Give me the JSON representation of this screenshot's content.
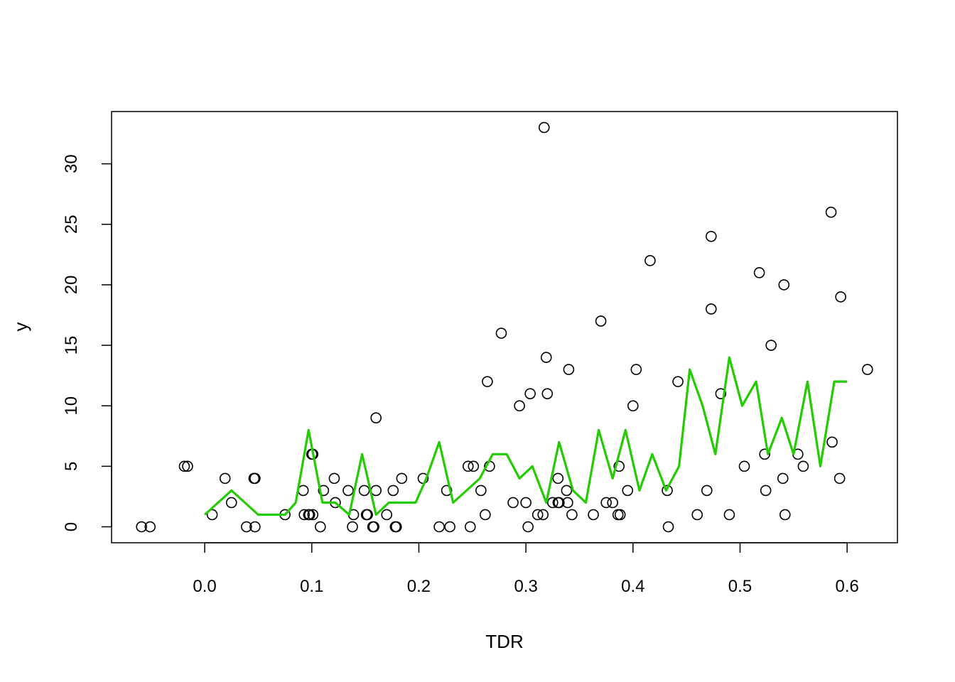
{
  "chart_data": {
    "type": "scatter",
    "title": "",
    "xlabel": "TDR",
    "ylabel": "y",
    "xlim": [
      -0.087,
      0.647
    ],
    "ylim": [
      -1.32,
      34.32
    ],
    "x_ticks": [
      "0.0",
      "0.1",
      "0.2",
      "0.3",
      "0.4",
      "0.5",
      "0.6"
    ],
    "y_ticks": [
      "0",
      "5",
      "10",
      "15",
      "20",
      "25",
      "30"
    ],
    "grid": false,
    "legend": "none",
    "colors": {
      "points": "#000000",
      "line": "#22cc00",
      "frame": "#000000"
    },
    "series": [
      {
        "kind": "points",
        "marker": "open-circle",
        "x": [
          -0.059,
          -0.051,
          -0.019,
          -0.016,
          0.007,
          0.019,
          0.025,
          0.039,
          0.046,
          0.047,
          0.047,
          0.075,
          0.092,
          0.093,
          0.097,
          0.098,
          0.1,
          0.101,
          0.101,
          0.108,
          0.111,
          0.121,
          0.122,
          0.134,
          0.138,
          0.139,
          0.149,
          0.151,
          0.152,
          0.157,
          0.158,
          0.16,
          0.16,
          0.17,
          0.176,
          0.178,
          0.179,
          0.184,
          0.204,
          0.219,
          0.226,
          0.229,
          0.246,
          0.248,
          0.251,
          0.258,
          0.262,
          0.264,
          0.266,
          0.277,
          0.288,
          0.294,
          0.3,
          0.302,
          0.304,
          0.311,
          0.316,
          0.317,
          0.319,
          0.32,
          0.325,
          0.33,
          0.33,
          0.331,
          0.338,
          0.339,
          0.34,
          0.343,
          0.363,
          0.37,
          0.375,
          0.381,
          0.386,
          0.387,
          0.388,
          0.395,
          0.4,
          0.403,
          0.416,
          0.432,
          0.433,
          0.442,
          0.46,
          0.469,
          0.473,
          0.473,
          0.482,
          0.49,
          0.504,
          0.518,
          0.523,
          0.524,
          0.529,
          0.54,
          0.541,
          0.542,
          0.554,
          0.559,
          0.585,
          0.586,
          0.593,
          0.594,
          0.619
        ],
        "y": [
          0,
          0,
          5,
          5,
          1,
          4,
          2,
          0,
          4,
          4,
          0,
          1,
          3,
          1,
          1,
          1,
          6,
          1,
          6,
          0,
          3,
          4,
          2,
          3,
          0,
          1,
          3,
          1,
          1,
          0,
          0,
          3,
          9,
          1,
          3,
          0,
          0,
          4,
          4,
          0,
          3,
          0,
          5,
          0,
          5,
          3,
          1,
          12,
          5,
          16,
          2,
          10,
          2,
          0,
          11,
          1,
          1,
          33,
          14,
          11,
          2,
          2,
          4,
          2,
          3,
          2,
          13,
          1,
          1,
          17,
          2,
          2,
          1,
          5,
          1,
          3,
          10,
          13,
          22,
          3,
          0,
          12,
          1,
          3,
          24,
          18,
          11,
          1,
          5,
          21,
          6,
          3,
          15,
          4,
          20,
          1,
          6,
          5,
          26,
          7,
          4,
          19,
          13
        ]
      },
      {
        "kind": "line",
        "x": [
          0.0,
          0.025,
          0.05,
          0.075,
          0.085,
          0.097,
          0.11,
          0.122,
          0.135,
          0.147,
          0.16,
          0.172,
          0.185,
          0.197,
          0.207,
          0.219,
          0.232,
          0.257,
          0.269,
          0.282,
          0.294,
          0.306,
          0.319,
          0.331,
          0.344,
          0.356,
          0.368,
          0.381,
          0.393,
          0.406,
          0.418,
          0.431,
          0.443,
          0.453,
          0.465,
          0.477,
          0.49,
          0.502,
          0.515,
          0.526,
          0.539,
          0.55,
          0.563,
          0.575,
          0.588,
          0.6
        ],
        "y": [
          1,
          3,
          1,
          1,
          2,
          8,
          2,
          2,
          1,
          6,
          1,
          2,
          2,
          2,
          4,
          7,
          2,
          4,
          6,
          6,
          4,
          5,
          2,
          7,
          3,
          2,
          8,
          4,
          8,
          3,
          6,
          3,
          5,
          13,
          10,
          6,
          14,
          10,
          12,
          6,
          9,
          6,
          12,
          5,
          12,
          12
        ]
      }
    ]
  }
}
